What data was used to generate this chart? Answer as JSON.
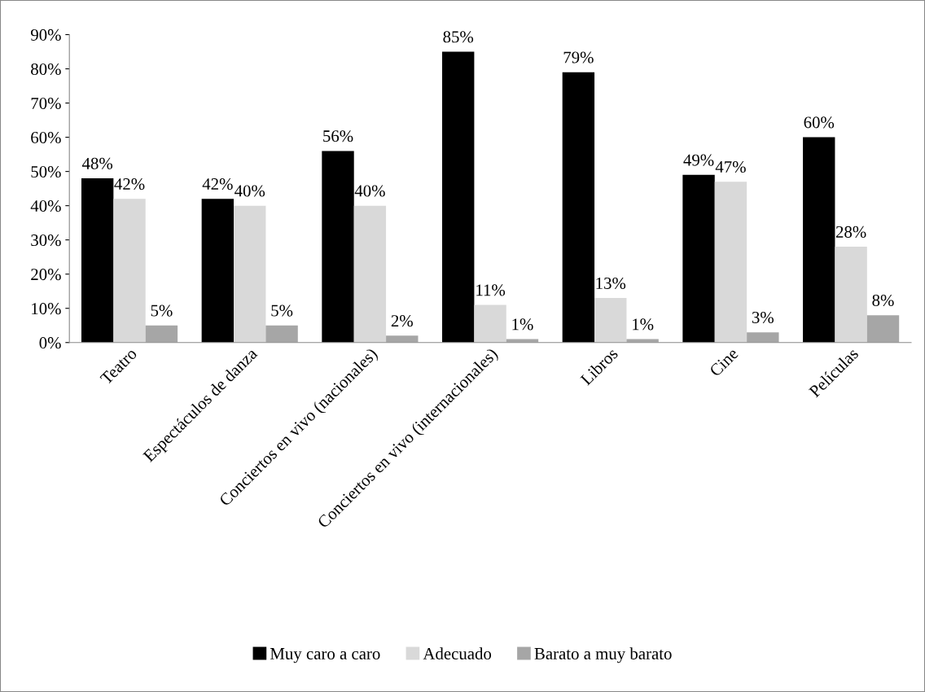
{
  "chart_data": {
    "type": "bar",
    "categories": [
      "Teatro",
      "Espectáculos de danza",
      "Conciertos en vivo (nacionales)",
      "Conciertos en vivo (internacionales)",
      "Libros",
      "Cine",
      "Películas"
    ],
    "series": [
      {
        "name": "Muy caro a caro",
        "color": "#000000",
        "values": [
          48,
          42,
          56,
          85,
          79,
          49,
          60
        ],
        "value_labels": [
          "48%",
          "42%",
          "56%",
          "85%",
          "79%",
          "49%",
          "60%"
        ]
      },
      {
        "name": "Adecuado",
        "color": "#d9d9d9",
        "values": [
          42,
          40,
          40,
          11,
          13,
          47,
          28
        ],
        "value_labels": [
          "42%",
          "40%",
          "40%",
          "11%",
          "13%",
          "47%",
          "28%"
        ]
      },
      {
        "name": "Barato a muy barato",
        "color": "#a6a6a6",
        "values": [
          5,
          5,
          2,
          1,
          1,
          3,
          8
        ],
        "value_labels": [
          "5%",
          "5%",
          "2%",
          "1%",
          "1%",
          "3%",
          "8%"
        ]
      }
    ],
    "ylim": [
      0,
      90
    ],
    "yticks": [
      {
        "value": 0,
        "label": "0%"
      },
      {
        "value": 10,
        "label": "10%"
      },
      {
        "value": 20,
        "label": "20%"
      },
      {
        "value": 30,
        "label": "30%"
      },
      {
        "value": 40,
        "label": "40%"
      },
      {
        "value": 50,
        "label": "50%"
      },
      {
        "value": 60,
        "label": "60%"
      },
      {
        "value": 70,
        "label": "70%"
      },
      {
        "value": 80,
        "label": "80%"
      },
      {
        "value": 90,
        "label": "90%"
      }
    ],
    "grid": false,
    "legend": "bottom"
  }
}
